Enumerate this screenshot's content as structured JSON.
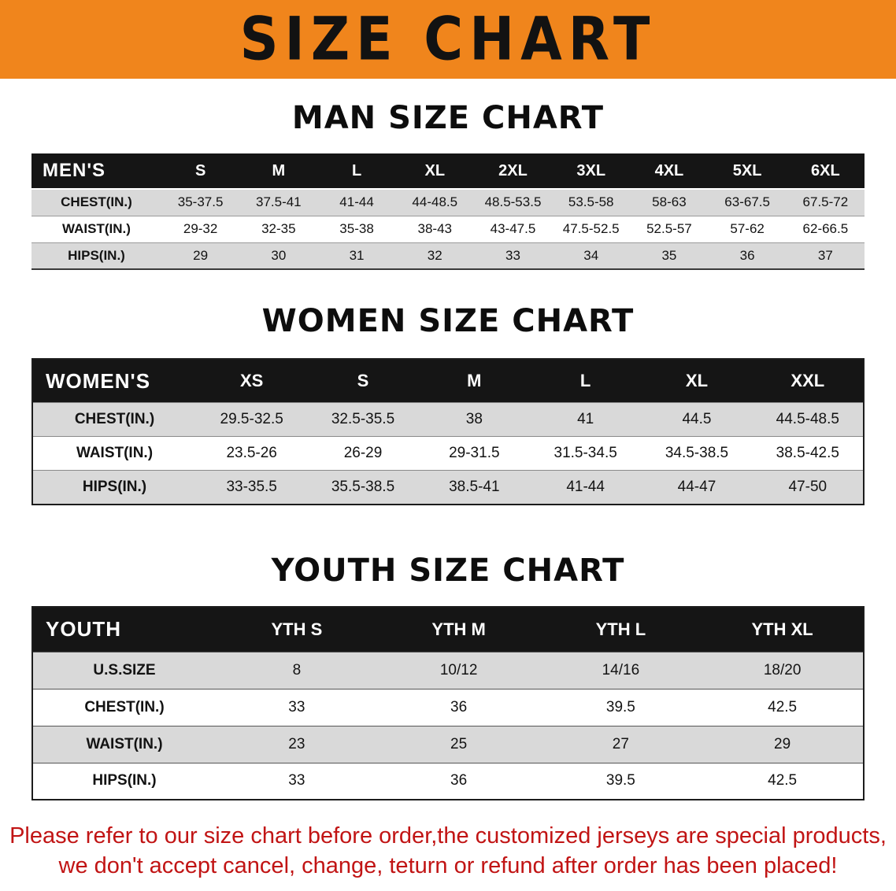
{
  "banner": {
    "title": "SIZE CHART"
  },
  "men": {
    "heading": "MAN SIZE CHART",
    "header": [
      "MEN'S",
      "S",
      "M",
      "L",
      "XL",
      "2XL",
      "3XL",
      "4XL",
      "5XL",
      "6XL"
    ],
    "rows": [
      {
        "label": "CHEST(IN.)",
        "values": [
          "35-37.5",
          "37.5-41",
          "41-44",
          "44-48.5",
          "48.5-53.5",
          "53.5-58",
          "58-63",
          "63-67.5",
          "67.5-72"
        ]
      },
      {
        "label": "WAIST(IN.)",
        "values": [
          "29-32",
          "32-35",
          "35-38",
          "38-43",
          "43-47.5",
          "47.5-52.5",
          "52.5-57",
          "57-62",
          "62-66.5"
        ]
      },
      {
        "label": "HIPS(IN.)",
        "values": [
          "29",
          "30",
          "31",
          "32",
          "33",
          "34",
          "35",
          "36",
          "37"
        ]
      }
    ]
  },
  "women": {
    "heading": "WOMEN SIZE CHART",
    "header": [
      "WOMEN'S",
      "XS",
      "S",
      "M",
      "L",
      "XL",
      "XXL"
    ],
    "rows": [
      {
        "label": "CHEST(IN.)",
        "values": [
          "29.5-32.5",
          "32.5-35.5",
          "38",
          "41",
          "44.5",
          "44.5-48.5"
        ]
      },
      {
        "label": "WAIST(IN.)",
        "values": [
          "23.5-26",
          "26-29",
          "29-31.5",
          "31.5-34.5",
          "34.5-38.5",
          "38.5-42.5"
        ]
      },
      {
        "label": "HIPS(IN.)",
        "values": [
          "33-35.5",
          "35.5-38.5",
          "38.5-41",
          "41-44",
          "44-47",
          "47-50"
        ]
      }
    ]
  },
  "youth": {
    "heading": "YOUTH SIZE CHART",
    "header": [
      "YOUTH",
      "YTH S",
      "YTH M",
      "YTH L",
      "YTH XL"
    ],
    "rows": [
      {
        "label": "U.S.SIZE",
        "values": [
          "8",
          "10/12",
          "14/16",
          "18/20"
        ]
      },
      {
        "label": "CHEST(IN.)",
        "values": [
          "33",
          "36",
          "39.5",
          "42.5"
        ]
      },
      {
        "label": "WAIST(IN.)",
        "values": [
          "23",
          "25",
          "27",
          "29"
        ]
      },
      {
        "label": "HIPS(IN.)",
        "values": [
          "33",
          "36",
          "39.5",
          "42.5"
        ]
      }
    ]
  },
  "disclaimer": {
    "line1": "Please refer to our size chart before order,the customized jerseys are special products,",
    "line2": "we don't accept cancel, change, teturn or refund after order has been placed!"
  },
  "colors": {
    "banner_bg": "#F0851C",
    "header_bg": "#151515",
    "stripe": "#d9d9d9",
    "disclaimer_color": "#c11414"
  }
}
